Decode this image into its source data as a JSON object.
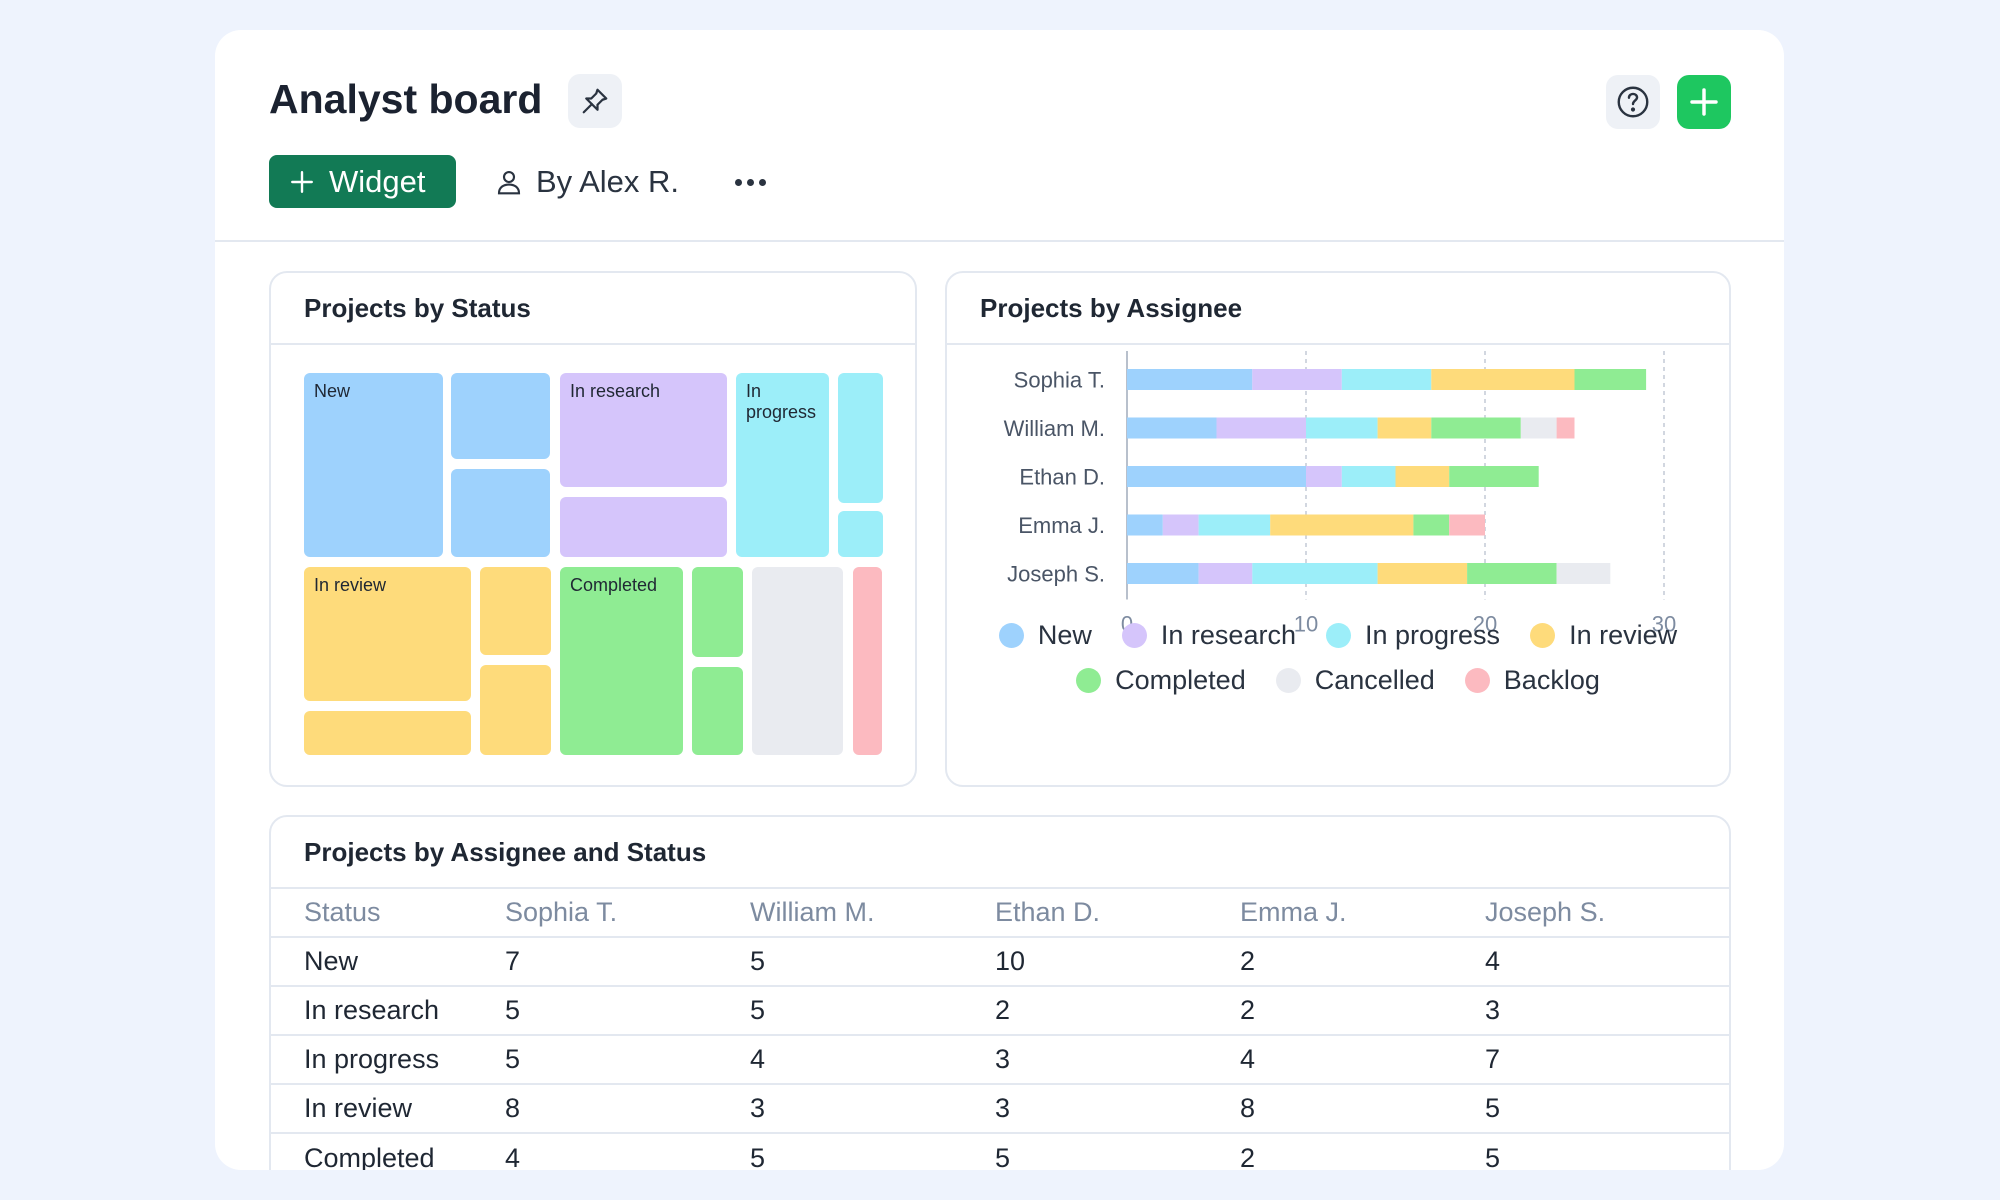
{
  "header": {
    "title": "Analyst board",
    "pin_icon": "pin-icon",
    "widget_button": "Widget",
    "owner": "By Alex R.",
    "help_icon": "help-icon",
    "add_icon": "plus-icon",
    "more_icon": "more-horizontal-icon"
  },
  "colors": {
    "new": "#9ed2fd",
    "in_research": "#d5c5fb",
    "in_progress": "#9ceef9",
    "in_review": "#fedb7b",
    "completed": "#8fec93",
    "cancelled": "#e9ebf0",
    "backlog": "#fcbac0",
    "accent_green": "#1ec760",
    "widget_green": "#127a55"
  },
  "status_panel": {
    "title": "Projects by Status",
    "labels": {
      "new": "New",
      "in_research": "In research",
      "in_progress": "In progress",
      "in_review": "In review",
      "completed": "Completed"
    }
  },
  "assignee_panel": {
    "title": "Projects by Assignee"
  },
  "chart_data": {
    "type": "bar",
    "orientation": "horizontal",
    "stacked": true,
    "categories": [
      "Sophia T.",
      "William M.",
      "Ethan D.",
      "Emma J.",
      "Joseph S."
    ],
    "series": [
      {
        "name": "New",
        "values": [
          7,
          5,
          10,
          2,
          4
        ]
      },
      {
        "name": "In research",
        "values": [
          5,
          5,
          2,
          2,
          3
        ]
      },
      {
        "name": "In progress",
        "values": [
          5,
          4,
          3,
          4,
          7
        ]
      },
      {
        "name": "In review",
        "values": [
          8,
          3,
          3,
          8,
          5
        ]
      },
      {
        "name": "Completed",
        "values": [
          4,
          5,
          5,
          2,
          5
        ]
      },
      {
        "name": "Cancelled",
        "values": [
          0,
          2,
          0,
          0,
          3
        ]
      },
      {
        "name": "Backlog",
        "values": [
          0,
          1,
          0,
          2,
          0
        ]
      }
    ],
    "xlim": [
      0,
      30
    ],
    "xticks": [
      0,
      10,
      20,
      30
    ],
    "grid": "vertical dashed",
    "legend": "bottom"
  },
  "table": {
    "title": "Projects by Assignee and Status",
    "headers": [
      "Status",
      "Sophia T.",
      "William M.",
      "Ethan D.",
      "Emma J.",
      "Joseph S."
    ],
    "rows": [
      [
        "New",
        "7",
        "5",
        "10",
        "2",
        "4"
      ],
      [
        "In research",
        "5",
        "5",
        "2",
        "2",
        "3"
      ],
      [
        "In progress",
        "5",
        "4",
        "3",
        "4",
        "7"
      ],
      [
        "In review",
        "8",
        "3",
        "3",
        "8",
        "5"
      ],
      [
        "Completed",
        "4",
        "5",
        "5",
        "2",
        "5"
      ]
    ]
  }
}
